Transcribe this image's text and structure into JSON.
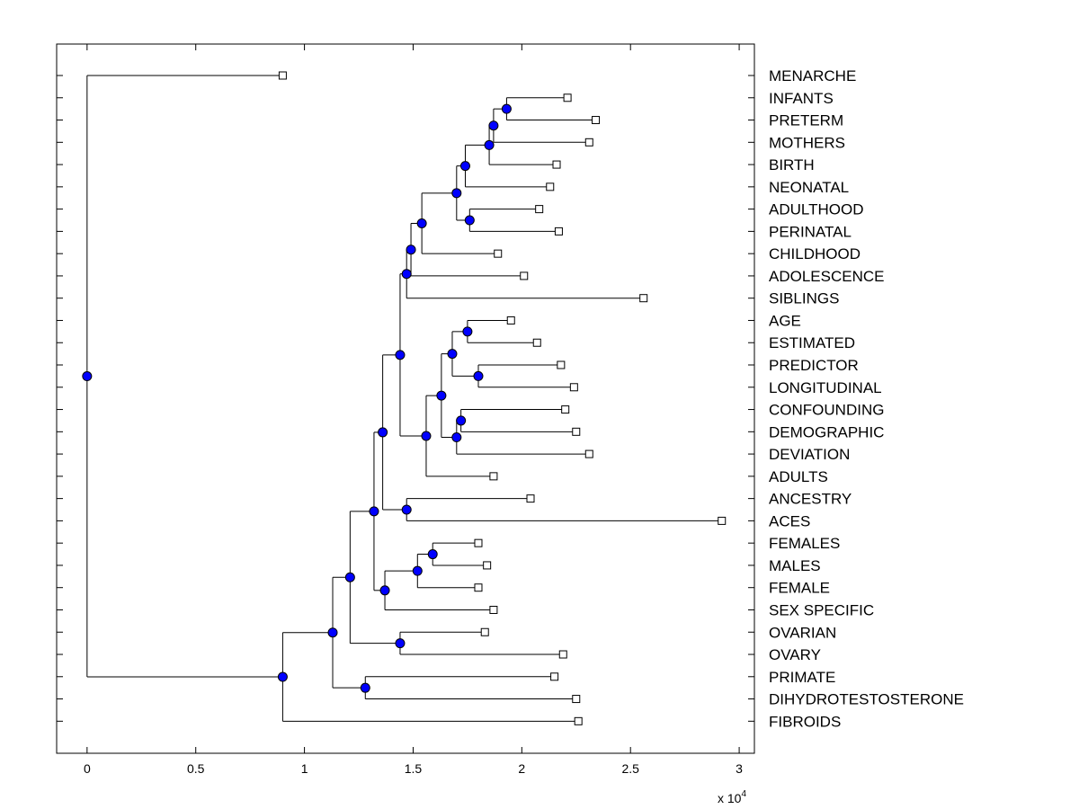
{
  "chart_data": {
    "type": "dendrogram",
    "title": "",
    "xlabel": "",
    "ylabel": "",
    "x_scale_label": "x 10",
    "x_scale_exponent": "4",
    "xlim": [
      -0.14,
      3.07
    ],
    "xticks": [
      {
        "value": 0,
        "label": "0"
      },
      {
        "value": 0.5,
        "label": "0.5"
      },
      {
        "value": 1,
        "label": "1"
      },
      {
        "value": 1.5,
        "label": "1.5"
      },
      {
        "value": 2,
        "label": "2"
      },
      {
        "value": 2.5,
        "label": "2.5"
      },
      {
        "value": 3,
        "label": "3"
      }
    ],
    "leaves": [
      {
        "label": "MENARCHE",
        "x": 0.9
      },
      {
        "label": "INFANTS",
        "x": 2.21
      },
      {
        "label": "PRETERM",
        "x": 2.34
      },
      {
        "label": "MOTHERS",
        "x": 2.31
      },
      {
        "label": "BIRTH",
        "x": 2.16
      },
      {
        "label": "NEONATAL",
        "x": 2.13
      },
      {
        "label": "ADULTHOOD",
        "x": 2.08
      },
      {
        "label": "PERINATAL",
        "x": 2.17
      },
      {
        "label": "CHILDHOOD",
        "x": 1.89
      },
      {
        "label": "ADOLESCENCE",
        "x": 2.01
      },
      {
        "label": "SIBLINGS",
        "x": 2.56
      },
      {
        "label": "AGE",
        "x": 1.95
      },
      {
        "label": "ESTIMATED",
        "x": 2.07
      },
      {
        "label": "PREDICTOR",
        "x": 2.18
      },
      {
        "label": "LONGITUDINAL",
        "x": 2.24
      },
      {
        "label": "CONFOUNDING",
        "x": 2.2
      },
      {
        "label": "DEMOGRAPHIC",
        "x": 2.25
      },
      {
        "label": "DEVIATION",
        "x": 2.31
      },
      {
        "label": "ADULTS",
        "x": 1.87
      },
      {
        "label": "ANCESTRY",
        "x": 2.04
      },
      {
        "label": "ACES",
        "x": 2.92
      },
      {
        "label": "FEMALES",
        "x": 1.8
      },
      {
        "label": "MALES",
        "x": 1.84
      },
      {
        "label": "FEMALE",
        "x": 1.8
      },
      {
        "label": "SEX SPECIFIC",
        "x": 1.87
      },
      {
        "label": "OVARIAN",
        "x": 1.83
      },
      {
        "label": "OVARY",
        "x": 2.19
      },
      {
        "label": "PRIMATE",
        "x": 2.15
      },
      {
        "label": "DIHYDROTESTOSTERONE",
        "x": 2.25
      },
      {
        "label": "FIBROIDS",
        "x": 2.26
      }
    ],
    "merges": [
      {
        "id": "c1",
        "x": 1.93,
        "children": [
          "L1",
          "L2"
        ]
      },
      {
        "id": "c2",
        "x": 1.87,
        "children": [
          "c1",
          "L3"
        ]
      },
      {
        "id": "c3",
        "x": 1.85,
        "children": [
          "c2",
          "L4"
        ]
      },
      {
        "id": "c4",
        "x": 1.74,
        "children": [
          "c3",
          "L5"
        ]
      },
      {
        "id": "c5",
        "x": 1.76,
        "children": [
          "L6",
          "L7"
        ]
      },
      {
        "id": "c6",
        "x": 1.7,
        "children": [
          "c4",
          "c5"
        ]
      },
      {
        "id": "c7",
        "x": 1.54,
        "children": [
          "c6",
          "L8"
        ]
      },
      {
        "id": "c8",
        "x": 1.49,
        "children": [
          "c7",
          "L9"
        ]
      },
      {
        "id": "c9",
        "x": 1.47,
        "children": [
          "c8",
          "L10"
        ]
      },
      {
        "id": "c10",
        "x": 1.75,
        "children": [
          "L11",
          "L12"
        ]
      },
      {
        "id": "c11",
        "x": 1.8,
        "children": [
          "L13",
          "L14"
        ]
      },
      {
        "id": "c12",
        "x": 1.68,
        "children": [
          "c10",
          "c11"
        ]
      },
      {
        "id": "c13",
        "x": 1.72,
        "children": [
          "L15",
          "L16"
        ]
      },
      {
        "id": "c14",
        "x": 1.7,
        "children": [
          "c13",
          "L17"
        ]
      },
      {
        "id": "c15",
        "x": 1.63,
        "children": [
          "c12",
          "c14"
        ]
      },
      {
        "id": "c16",
        "x": 1.56,
        "children": [
          "c15",
          "L18"
        ]
      },
      {
        "id": "c17",
        "x": 1.44,
        "children": [
          "c9",
          "c16"
        ]
      },
      {
        "id": "c18",
        "x": 1.47,
        "children": [
          "L19",
          "L20"
        ]
      },
      {
        "id": "c19",
        "x": 1.36,
        "children": [
          "c17",
          "c18"
        ]
      },
      {
        "id": "c20",
        "x": 1.59,
        "children": [
          "L21",
          "L22"
        ]
      },
      {
        "id": "c21",
        "x": 1.52,
        "children": [
          "c20",
          "L23"
        ]
      },
      {
        "id": "c22",
        "x": 1.37,
        "children": [
          "c21",
          "L24"
        ]
      },
      {
        "id": "c23",
        "x": 1.32,
        "children": [
          "c19",
          "c22"
        ]
      },
      {
        "id": "c24",
        "x": 1.44,
        "children": [
          "L25",
          "L26"
        ]
      },
      {
        "id": "c25",
        "x": 1.21,
        "children": [
          "c23",
          "c24"
        ]
      },
      {
        "id": "c26",
        "x": 1.28,
        "children": [
          "L27",
          "L28"
        ]
      },
      {
        "id": "c27",
        "x": 1.13,
        "children": [
          "c25",
          "c26"
        ]
      },
      {
        "id": "c28",
        "x": 0.9,
        "children": [
          "c27",
          "L29"
        ]
      },
      {
        "id": "c29",
        "x": 0.0,
        "children": [
          "L0",
          "c28"
        ]
      }
    ]
  }
}
